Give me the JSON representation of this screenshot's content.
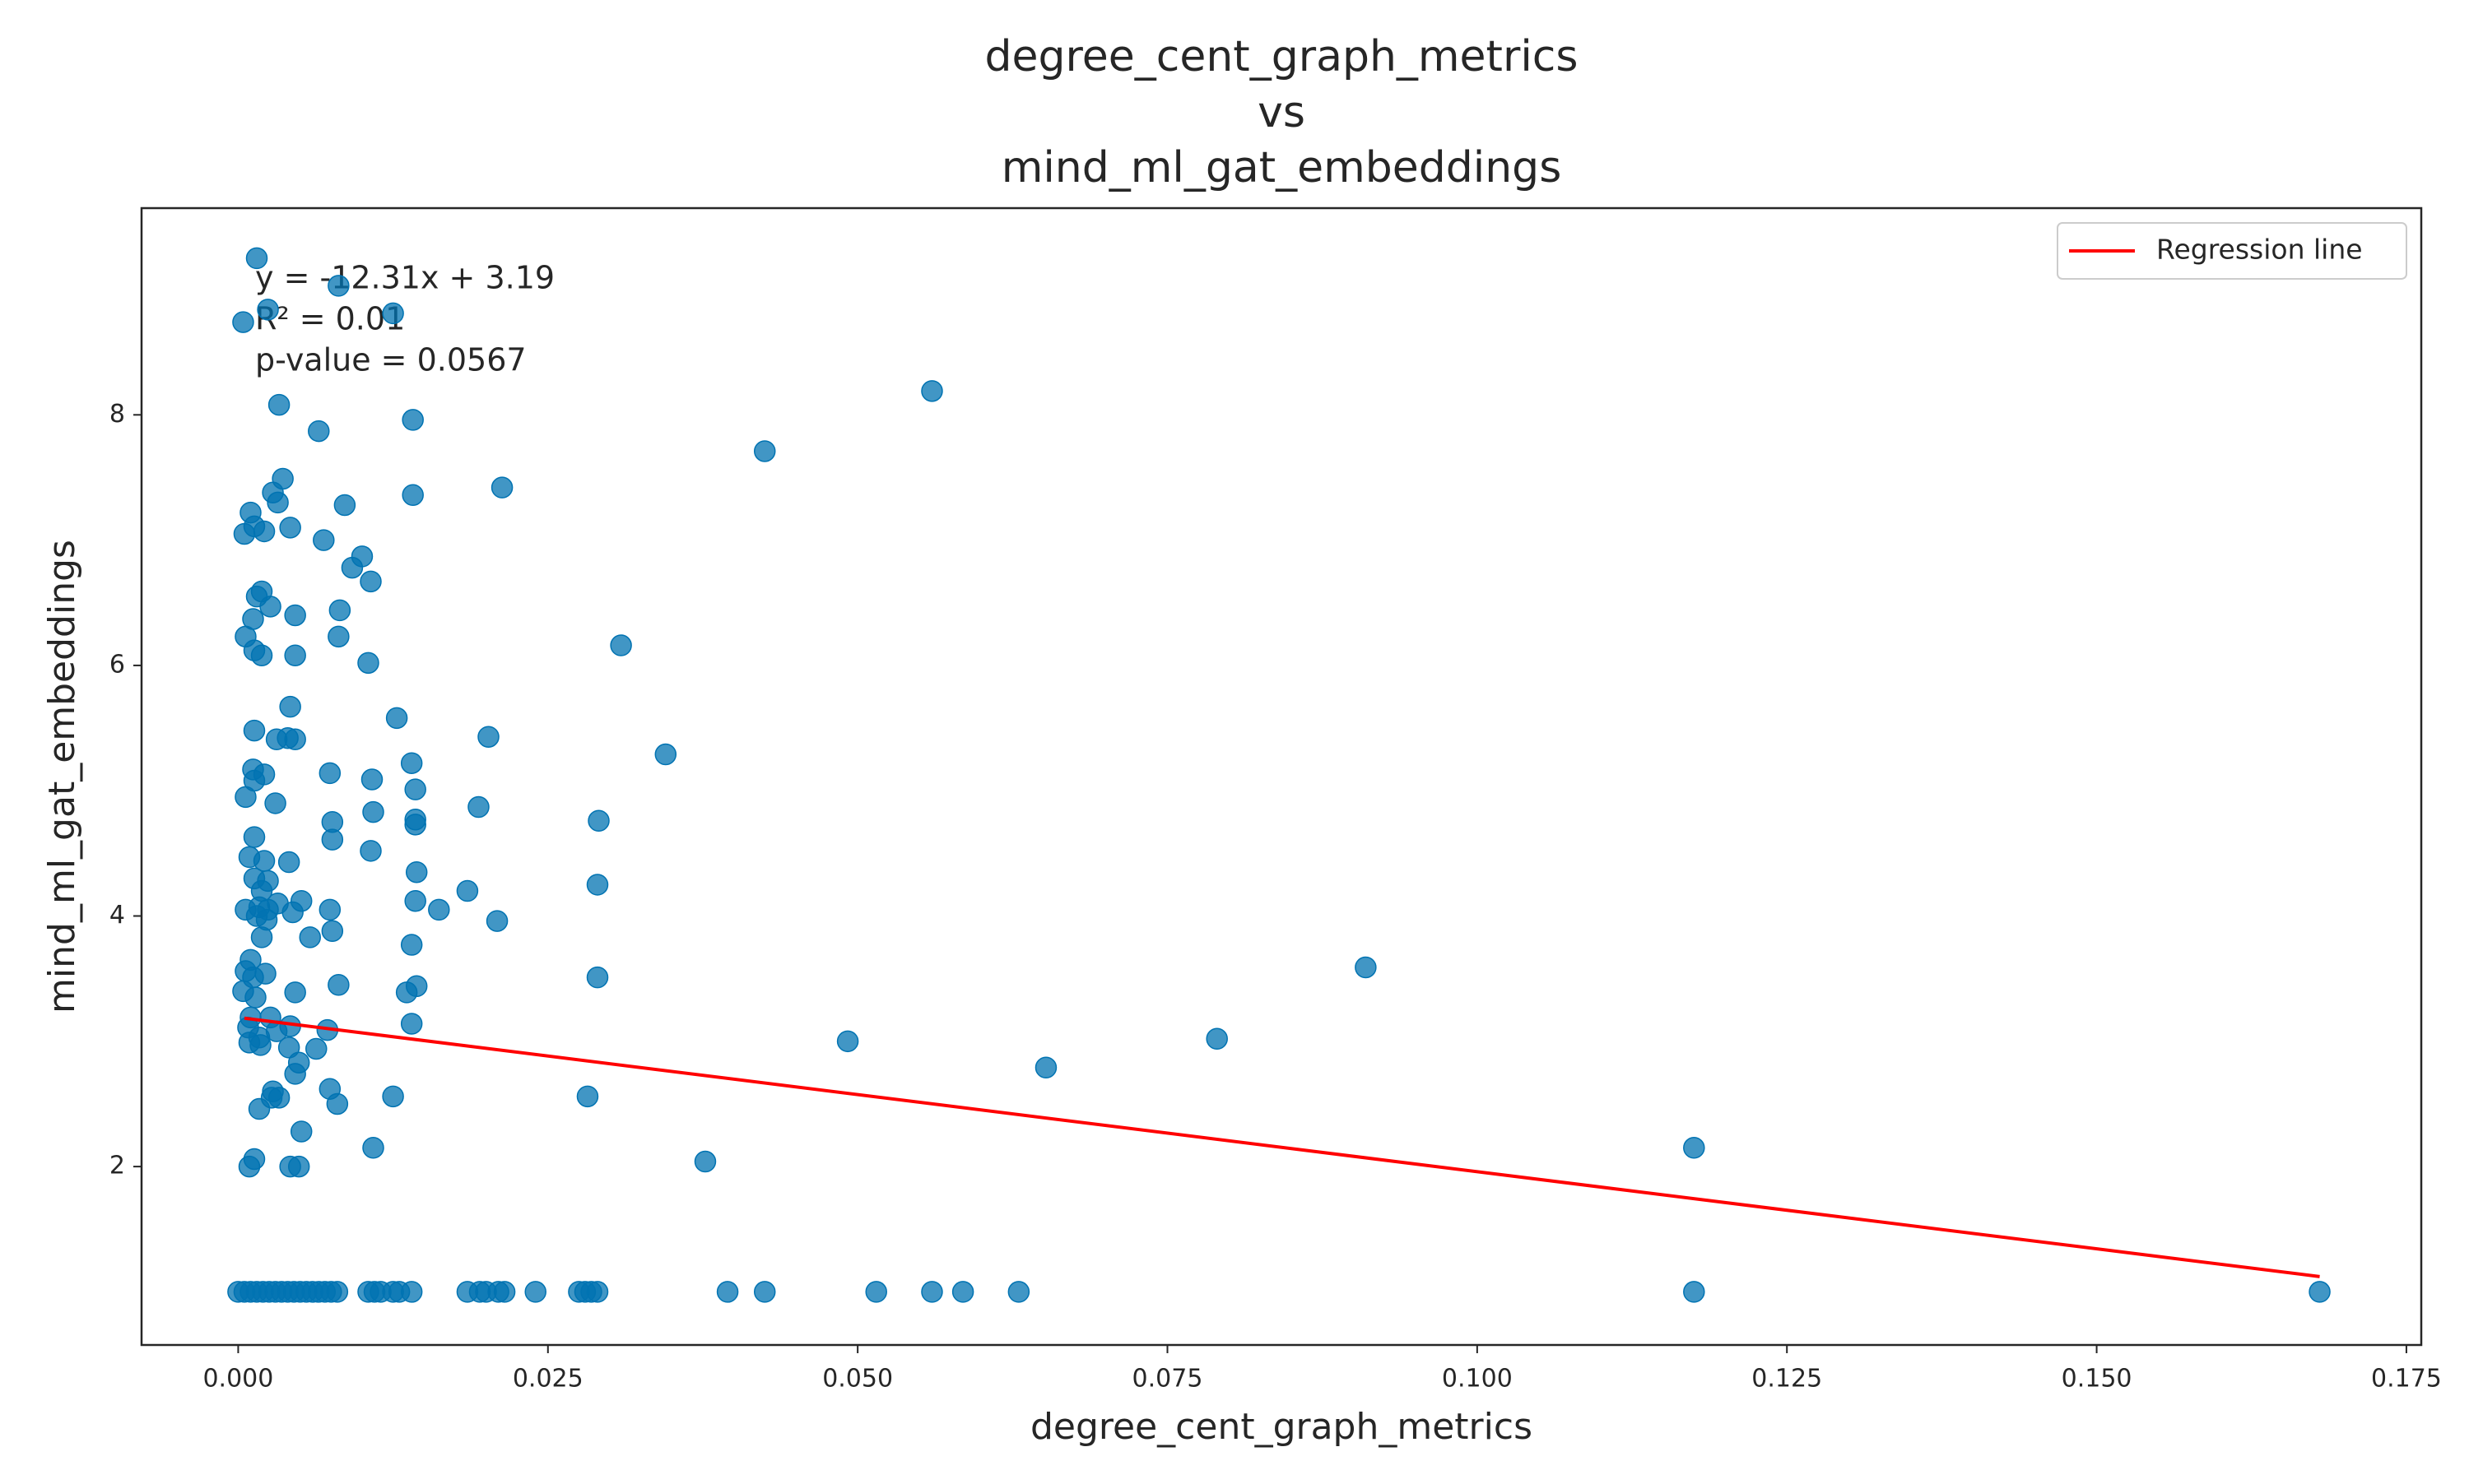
{
  "chart_data": {
    "type": "scatter",
    "title": [
      "degree_cent_graph_metrics",
      "vs",
      "mind_ml_gat_embeddings"
    ],
    "x_label": "degree_cent_graph_metrics",
    "y_label": "mind_ml_gat_embeddings",
    "annotations": [
      "y = -12.31x + 3.19",
      "R² = 0.01",
      "p-value = 0.0567"
    ],
    "xlim": [
      -0.0078,
      0.1762
    ],
    "ylim": [
      0.576,
      9.65
    ],
    "xticks": [
      {
        "value": 0,
        "label": "0.000"
      },
      {
        "value": 0.025,
        "label": "0.025"
      },
      {
        "value": 0.05,
        "label": "0.050"
      },
      {
        "value": 0.075,
        "label": "0.075"
      },
      {
        "value": 0.1,
        "label": "0.100"
      },
      {
        "value": 0.125,
        "label": "0.125"
      },
      {
        "value": 0.15,
        "label": "0.150"
      },
      {
        "value": 0.175,
        "label": "0.175"
      }
    ],
    "yticks": [
      2,
      4,
      6,
      8
    ],
    "legend": "upper right",
    "series": [
      {
        "color": "#0173b2",
        "x": [
          0.0015,
          0.0004,
          0.0024,
          0.0081,
          0.0125,
          0.0033,
          0.0065,
          0.0141,
          0.056,
          0.0425,
          0.0213,
          0.0141,
          0.0036,
          0.0028,
          0.0032,
          0.0086,
          0.001,
          0.0042,
          0.0013,
          0.0021,
          0.0005,
          0.0069,
          0.01,
          0.0092,
          0.0107,
          0.0019,
          0.0015,
          0.0026,
          0.0082,
          0.0012,
          0.0046,
          0.0006,
          0.0081,
          0.0309,
          0.0013,
          0.0019,
          0.0046,
          0.0105,
          0.0042,
          0.0128,
          0.0013,
          0.004,
          0.0031,
          0.0046,
          0.0202,
          0.0345,
          0.014,
          0.0012,
          0.0074,
          0.0021,
          0.0013,
          0.0108,
          0.0006,
          0.0143,
          0.003,
          0.0194,
          0.0109,
          0.0143,
          0.0143,
          0.0076,
          0.0291,
          0.0013,
          0.0076,
          0.0107,
          0.0009,
          0.0041,
          0.0021,
          0.0144,
          0.0013,
          0.0024,
          0.029,
          0.0019,
          0.0185,
          0.0143,
          0.0051,
          0.0032,
          0.0017,
          0.0006,
          0.0074,
          0.0162,
          0.0024,
          0.0044,
          0.0015,
          0.0023,
          0.0209,
          0.0076,
          0.0058,
          0.0019,
          0.014,
          0.001,
          0.0006,
          0.0022,
          0.0012,
          0.029,
          0.091,
          0.0081,
          0.0144,
          0.0004,
          0.0136,
          0.0046,
          0.0014,
          0.001,
          0.0026,
          0.014,
          0.0008,
          0.0042,
          0.0031,
          0.0072,
          0.0017,
          0.0492,
          0.079,
          0.0009,
          0.0018,
          0.0041,
          0.0063,
          0.0652,
          0.0049,
          0.0046,
          0.0074,
          0.0028,
          0.0027,
          0.0033,
          0.0125,
          0.0282,
          0.0017,
          0.008,
          0.0051,
          0.0109,
          0.1175,
          0.0013,
          0.0377,
          0.0009,
          0.0042,
          0.0049,
          0.0,
          0.0005,
          0.001,
          0.0015,
          0.002,
          0.0025,
          0.003,
          0.0035,
          0.004,
          0.0045,
          0.005,
          0.0055,
          0.006,
          0.0065,
          0.007,
          0.0075,
          0.008,
          0.0105,
          0.011,
          0.0115,
          0.0125,
          0.013,
          0.014,
          0.0185,
          0.0195,
          0.02,
          0.021,
          0.0215,
          0.024,
          0.0275,
          0.028,
          0.0285,
          0.029,
          0.0395,
          0.0425,
          0.0515,
          0.056,
          0.0585,
          0.063,
          0.1175,
          0.168
        ],
        "values": [
          9.25,
          8.74,
          8.84,
          9.03,
          8.81,
          8.08,
          7.87,
          7.96,
          8.19,
          7.71,
          7.42,
          7.36,
          7.49,
          7.38,
          7.3,
          7.28,
          7.22,
          7.1,
          7.11,
          7.07,
          7.05,
          7.0,
          6.87,
          6.78,
          6.67,
          6.59,
          6.55,
          6.47,
          6.44,
          6.37,
          6.4,
          6.23,
          6.23,
          6.16,
          6.12,
          6.08,
          6.08,
          6.02,
          5.67,
          5.58,
          5.48,
          5.42,
          5.41,
          5.41,
          5.43,
          5.29,
          5.22,
          5.17,
          5.14,
          5.13,
          5.08,
          5.09,
          4.95,
          5.01,
          4.9,
          4.87,
          4.83,
          4.77,
          4.73,
          4.75,
          4.76,
          4.63,
          4.61,
          4.52,
          4.47,
          4.43,
          4.44,
          4.35,
          4.3,
          4.28,
          4.25,
          4.2,
          4.2,
          4.12,
          4.12,
          4.1,
          4.07,
          4.05,
          4.05,
          4.05,
          4.05,
          4.03,
          4.0,
          3.97,
          3.96,
          3.88,
          3.83,
          3.83,
          3.77,
          3.65,
          3.56,
          3.54,
          3.51,
          3.51,
          3.59,
          3.45,
          3.44,
          3.4,
          3.39,
          3.39,
          3.35,
          3.19,
          3.19,
          3.14,
          3.11,
          3.12,
          3.08,
          3.09,
          3.03,
          3.0,
          3.02,
          2.99,
          2.97,
          2.95,
          2.94,
          2.79,
          2.83,
          2.74,
          2.62,
          2.6,
          2.55,
          2.55,
          2.56,
          2.56,
          2.46,
          2.5,
          2.28,
          2.15,
          2.15,
          2.06,
          2.04,
          2.0,
          2.0,
          2.0,
          1,
          1,
          1,
          1,
          1,
          1,
          1,
          1,
          1,
          1,
          1,
          1,
          1,
          1,
          1,
          1,
          1,
          1,
          1,
          1,
          1,
          1,
          1,
          1,
          1,
          1,
          1,
          1,
          1,
          1,
          1,
          1,
          1,
          1,
          1,
          1,
          1,
          1,
          1,
          1,
          1
        ]
      }
    ],
    "regression": {
      "name": "Regression line",
      "color": "#ff0000",
      "x": [
        0.0005,
        0.168
      ],
      "values": [
        3.184,
        1.122
      ]
    }
  }
}
